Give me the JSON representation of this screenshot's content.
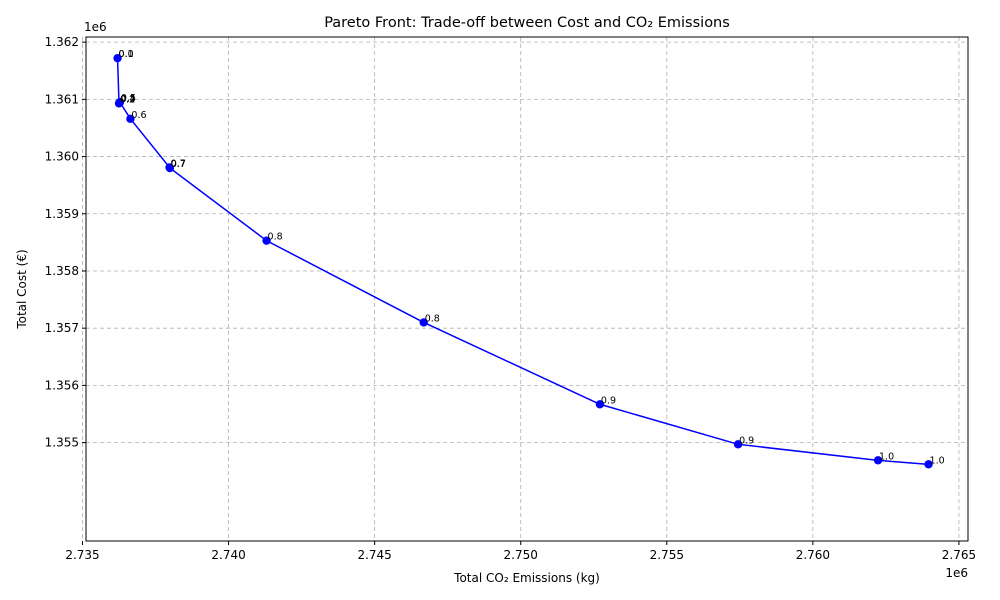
{
  "chart_data": {
    "type": "line",
    "title": "Pareto Front: Trade-off between Cost and CO₂ Emissions",
    "xlabel": "Total CO₂ Emissions (kg)",
    "ylabel": "Total Cost (€)",
    "x_offset_text": "1e6",
    "y_offset_text": "1e6",
    "xlim": [
      2.73512,
      2.76531
    ],
    "ylim": [
      1.35328,
      1.36209
    ],
    "xticks": [
      2.735,
      2.74,
      2.745,
      2.75,
      2.755,
      2.76,
      2.765
    ],
    "xtick_labels": [
      "2.735",
      "2.740",
      "2.745",
      "2.750",
      "2.755",
      "2.760",
      "2.765"
    ],
    "yticks": [
      1.355,
      1.356,
      1.357,
      1.358,
      1.359,
      1.36,
      1.361,
      1.362
    ],
    "ytick_labels": [
      "1.355",
      "1.356",
      "1.357",
      "1.358",
      "1.359",
      "1.360",
      "1.361",
      "1.362"
    ],
    "grid": true,
    "grid_style": "dashed",
    "line_color": "#0000ff",
    "marker_color": "#0000ff",
    "marker": "circle",
    "series": [
      {
        "x": [
          2.7362,
          2.73625,
          2.73626,
          2.73627,
          2.73628,
          2.73664,
          2.73798,
          2.73799,
          2.7413,
          2.74668,
          2.75271,
          2.75744,
          2.76223,
          2.76396
        ],
        "y": [
          1.36172,
          1.36093,
          1.36094,
          1.36094,
          1.36095,
          1.36066,
          1.35981,
          1.3598,
          1.35853,
          1.3571,
          1.35567,
          1.35497,
          1.35469,
          1.35462
        ]
      }
    ],
    "annotations": [
      {
        "x": 2.7362,
        "y": 1.36172,
        "text": "0.1"
      },
      {
        "x": 2.7362,
        "y": 1.36172,
        "text": "0.0"
      },
      {
        "x": 2.73625,
        "y": 1.36093,
        "text": "0.2"
      },
      {
        "x": 2.73626,
        "y": 1.36094,
        "text": "0.3"
      },
      {
        "x": 2.73627,
        "y": 1.36094,
        "text": "0.4"
      },
      {
        "x": 2.73628,
        "y": 1.36095,
        "text": "0.5"
      },
      {
        "x": 2.73664,
        "y": 1.36066,
        "text": "0.6"
      },
      {
        "x": 2.73798,
        "y": 1.35981,
        "text": "0.7"
      },
      {
        "x": 2.73799,
        "y": 1.3598,
        "text": "0.7"
      },
      {
        "x": 2.7413,
        "y": 1.35853,
        "text": "0.8"
      },
      {
        "x": 2.74668,
        "y": 1.3571,
        "text": "0.8"
      },
      {
        "x": 2.75271,
        "y": 1.35567,
        "text": "0.9"
      },
      {
        "x": 2.75744,
        "y": 1.35497,
        "text": "0.9"
      },
      {
        "x": 2.76223,
        "y": 1.35469,
        "text": "1.0"
      },
      {
        "x": 2.76396,
        "y": 1.35462,
        "text": "1.0"
      }
    ]
  }
}
